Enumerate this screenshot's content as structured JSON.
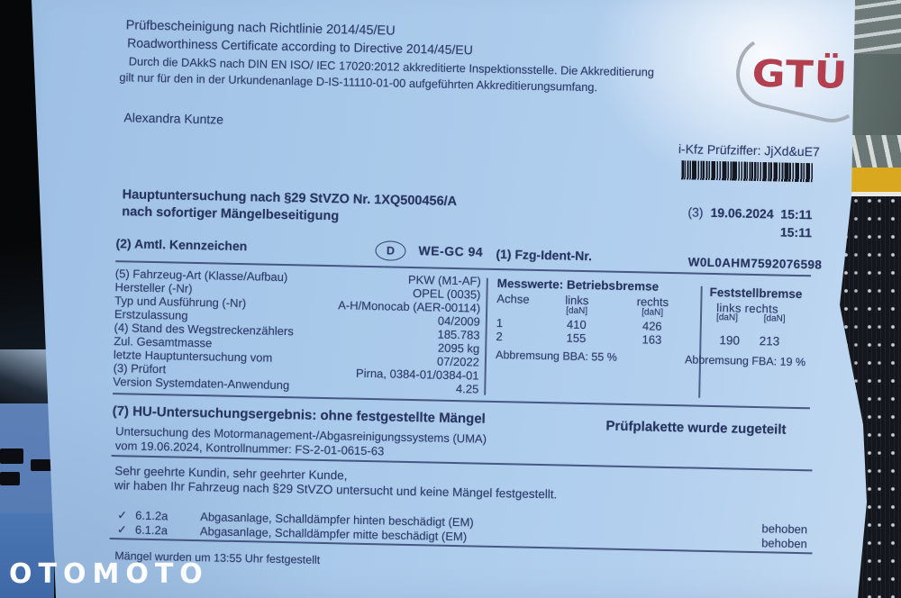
{
  "watermark": "OTOMOTO",
  "colors": {
    "paper": "#a9c9ea",
    "ink": "#2e3c6a",
    "logo_red": "#b2404f",
    "seat_fabric": "#14161d",
    "road_yellow": "#d9a81e",
    "watermark_white": "#fcfdfe"
  },
  "header": {
    "line1": "Prüfbescheinigung nach Richtlinie 2014/45/EU",
    "line2": "Roadworthiness Certificate according to Directive 2014/45/EU",
    "line3": "Durch die DAkkS nach DIN EN ISO/ IEC 17020:2012 akkreditierte Inspektionsstelle. Die Akkreditierung",
    "line4": "gilt nur für den in der Urkundenanlage D-IS-11110-01-00 aufgeführten Akkreditierungsumfang.",
    "inspector": "Alexandra Kuntze",
    "logo_text": "GTÜ",
    "pruefziffer": "i-Kfz Prüfziffer: JjXd&uE7"
  },
  "inspection": {
    "title": "Hauptuntersuchung nach §29 StVZO Nr. 1XQ500456/A",
    "subtitle": "nach sofortiger Mängelbeseitigung",
    "date_label": "(3)",
    "date": "19.06.2024",
    "time1": "15:11",
    "time2": "15:11"
  },
  "vehicle": {
    "kennzeichen_label": "(2) Amtl. Kennzeichen",
    "country": "D",
    "plate": "WE-GC 94",
    "vin_label": "(1) Fzg-Ident-Nr.",
    "vin": "W0L0AHM7592076598",
    "rows": [
      {
        "label": "(5) Fahrzeug-Art (Klasse/Aufbau)",
        "value": "PKW (M1-AF)"
      },
      {
        "label": "Hersteller (-Nr)",
        "value": "OPEL (0035)"
      },
      {
        "label": "Typ und Ausführung (-Nr)",
        "value": "A-H/Monocab (AER-00114)"
      },
      {
        "label": "Erstzulassung",
        "value": "04/2009"
      },
      {
        "label": "(4) Stand des Wegstreckenzählers",
        "value": "185.783"
      },
      {
        "label": "Zul. Gesamtmasse",
        "value": "2095 kg"
      },
      {
        "label": "letzte Hauptuntersuchung vom",
        "value": "07/2022"
      },
      {
        "label": "(3) Prüfort",
        "value": "Pirna, 0384-01/0384-01"
      },
      {
        "label": "Version Systemdaten-Anwendung",
        "value": "4.25"
      }
    ]
  },
  "brakes": {
    "service": {
      "title": "Messwerte: Betriebsbremse",
      "col_achse": "Achse",
      "col_links": "links",
      "col_rechts": "rechts",
      "unit": "[daN]",
      "rows": [
        {
          "achse": "1",
          "links": "410",
          "rechts": "426"
        },
        {
          "achse": "2",
          "links": "155",
          "rechts": "163"
        }
      ],
      "abbremsung": "Abbremsung BBA: 55 %"
    },
    "parking": {
      "title": "Feststellbremse",
      "cols": "links  rechts",
      "unit": "[daN]",
      "values": "190  213",
      "abbremsung": "Abbremsung FBA: 19 %"
    }
  },
  "result": {
    "heading": "(7) HU-Untersuchungsergebnis: ohne festgestellte Mängel",
    "plakette": "Prüfplakette wurde zugeteilt",
    "uma_line1": "Untersuchung des Motormanagement-/Abgasreinigungssystems (UMA)",
    "uma_line2": "vom 19.06.2024, Kontrollnummer: FS-2-01-0615-63",
    "greeting1": "Sehr geehrte Kundin, sehr geehrter Kunde,",
    "greeting2": "wir haben Ihr Fahrzeug nach §29 StVZO untersucht und keine Mängel festgestellt."
  },
  "defects": {
    "items": [
      {
        "check": "✓",
        "code": "6.1.2a",
        "text": "Abgasanlage, Schalldämpfer hinten beschädigt (EM)",
        "status": "behoben"
      },
      {
        "check": "✓",
        "code": "6.1.2a",
        "text": "Abgasanlage, Schalldämpfer mitte beschädigt (EM)",
        "status": "behoben"
      }
    ],
    "footer": "Mängel wurden um 13:55 Uhr festgestellt"
  }
}
